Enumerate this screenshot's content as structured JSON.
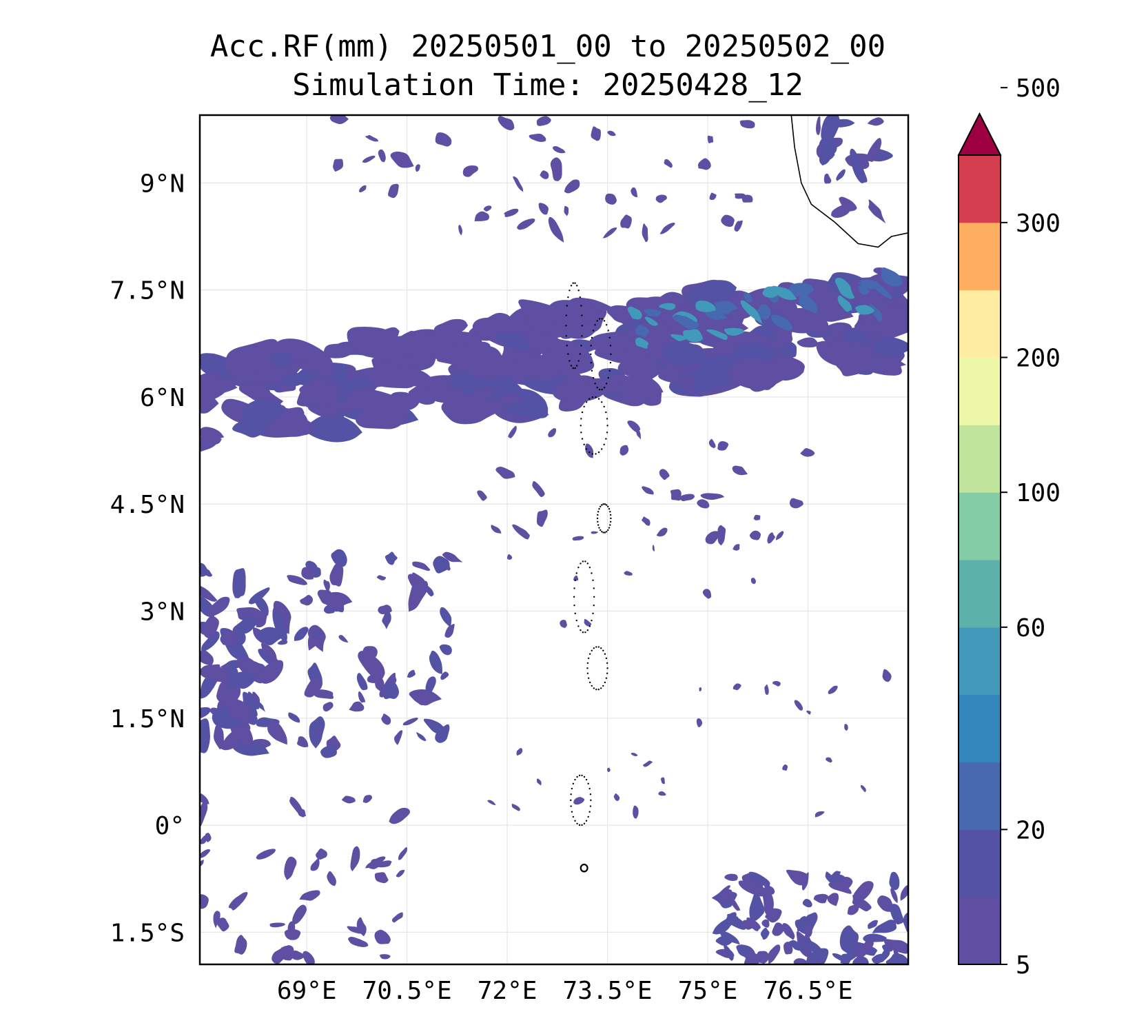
{
  "title": {
    "line1": "Acc.RF(mm) 20250501_00 to 20250502_00",
    "line2": "Simulation Time: 20250428_12"
  },
  "map": {
    "lon_range": [
      67.4,
      78.0
    ],
    "lat_range": [
      -1.95,
      9.95
    ],
    "x_ticks": [
      {
        "value": 69.0,
        "label": "69°E"
      },
      {
        "value": 70.5,
        "label": "70.5°E"
      },
      {
        "value": 72.0,
        "label": "72°E"
      },
      {
        "value": 73.5,
        "label": "73.5°E"
      },
      {
        "value": 75.0,
        "label": "75°E"
      },
      {
        "value": 76.5,
        "label": "76.5°E"
      }
    ],
    "y_ticks": [
      {
        "value": 9.0,
        "label": "9°N"
      },
      {
        "value": 7.5,
        "label": "7.5°N"
      },
      {
        "value": 6.0,
        "label": "6°N"
      },
      {
        "value": 4.5,
        "label": "4.5°N"
      },
      {
        "value": 3.0,
        "label": "3°N"
      },
      {
        "value": 1.5,
        "label": "1.5°N"
      },
      {
        "value": 0.0,
        "label": "0°"
      },
      {
        "value": -1.5,
        "label": "1.5°S"
      }
    ],
    "grid": true
  },
  "colorbar": {
    "levels": [
      5,
      10,
      20,
      40,
      50,
      60,
      80,
      100,
      150,
      200,
      250,
      300,
      400,
      500
    ],
    "colors": [
      "#5e4fa2",
      "#5352a5",
      "#4669b0",
      "#3288bd",
      "#419aba",
      "#5cb2aa",
      "#83cca6",
      "#c1e49c",
      "#eef8a9",
      "#feeca2",
      "#fdae61",
      "#d53e4f"
    ],
    "extend_color": "#9e0142",
    "tick_labels": [
      "5",
      "20",
      "60",
      "100",
      "200",
      "300",
      "500"
    ]
  }
}
